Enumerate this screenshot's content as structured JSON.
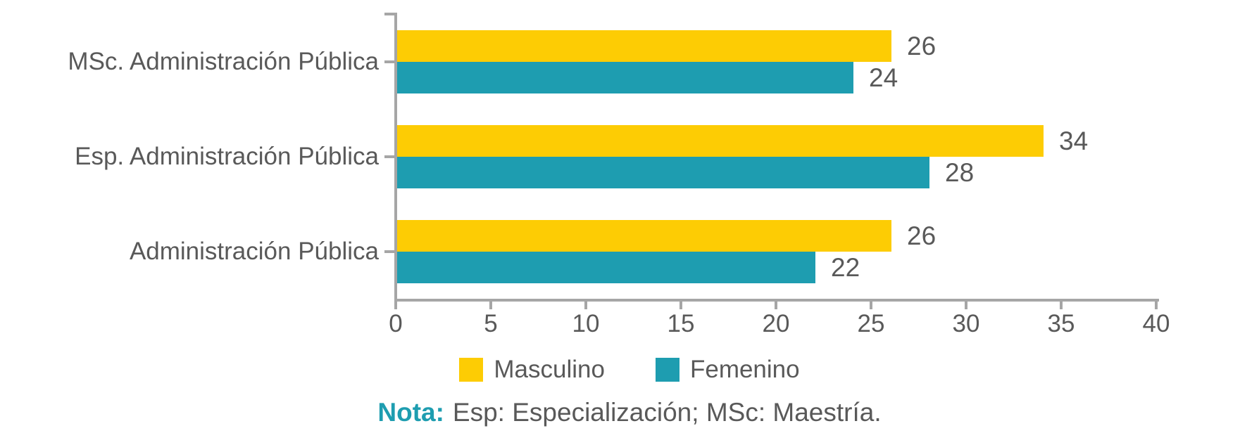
{
  "chart_data": {
    "type": "bar",
    "orientation": "horizontal",
    "title": "",
    "categories": [
      "MSc. Administración Pública",
      "Esp. Administración Pública",
      "Administración Pública"
    ],
    "series": [
      {
        "name": "Masculino",
        "color": "#fdcc04",
        "values": [
          26,
          34,
          26
        ]
      },
      {
        "name": "Femenino",
        "color": "#1e9db0",
        "values": [
          24,
          28,
          22
        ]
      }
    ],
    "xlim": [
      0,
      40
    ],
    "x_ticks": [
      0,
      5,
      10,
      15,
      20,
      25,
      30,
      35,
      40
    ],
    "grid": false,
    "legend_position": "bottom",
    "data_labels": true
  },
  "note": {
    "label": "Nota:",
    "text": "Esp: Especialización; MSc: Maestría."
  },
  "colors": {
    "masculino": "#fdcc04",
    "femenino": "#1e9db0",
    "axis": "#a6a6a6",
    "text": "#595959",
    "note_label": "#1e9db0"
  }
}
